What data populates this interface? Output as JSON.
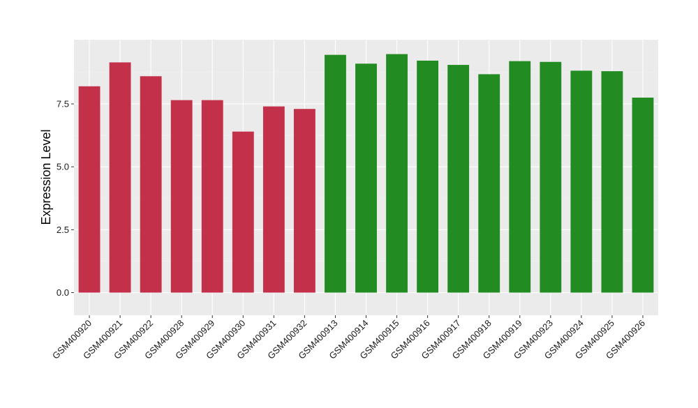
{
  "chart_data": {
    "type": "bar",
    "ylabel": "Expression Level",
    "xlabel": "",
    "title": "",
    "ylim": [
      -0.9,
      10.05
    ],
    "yticks": [
      0.0,
      2.5,
      5.0,
      7.5
    ],
    "ytick_labels": [
      "0.0",
      "2.5",
      "5.0",
      "7.5"
    ],
    "grid": true,
    "legend": "none",
    "colors": {
      "panel_background": "#ebebeb",
      "grid_major": "#ffffff",
      "grid_minor": "#f3f3f3",
      "group_red": "#c3304a",
      "group_green": "#228b22"
    },
    "categories": [
      "GSM400920",
      "GSM400921",
      "GSM400922",
      "GSM400928",
      "GSM400929",
      "GSM400930",
      "GSM400931",
      "GSM400932",
      "GSM400913",
      "GSM400914",
      "GSM400915",
      "GSM400916",
      "GSM400917",
      "GSM400918",
      "GSM400919",
      "GSM400923",
      "GSM400924",
      "GSM400925",
      "GSM400926"
    ],
    "values": [
      8.2,
      9.15,
      8.6,
      7.65,
      7.65,
      6.4,
      7.4,
      7.3,
      9.45,
      9.1,
      9.48,
      9.22,
      9.05,
      8.68,
      9.2,
      9.17,
      8.82,
      8.8,
      7.75
    ],
    "bar_colors": [
      "#c3304a",
      "#c3304a",
      "#c3304a",
      "#c3304a",
      "#c3304a",
      "#c3304a",
      "#c3304a",
      "#c3304a",
      "#228b22",
      "#228b22",
      "#228b22",
      "#228b22",
      "#228b22",
      "#228b22",
      "#228b22",
      "#228b22",
      "#228b22",
      "#228b22",
      "#228b22"
    ]
  }
}
